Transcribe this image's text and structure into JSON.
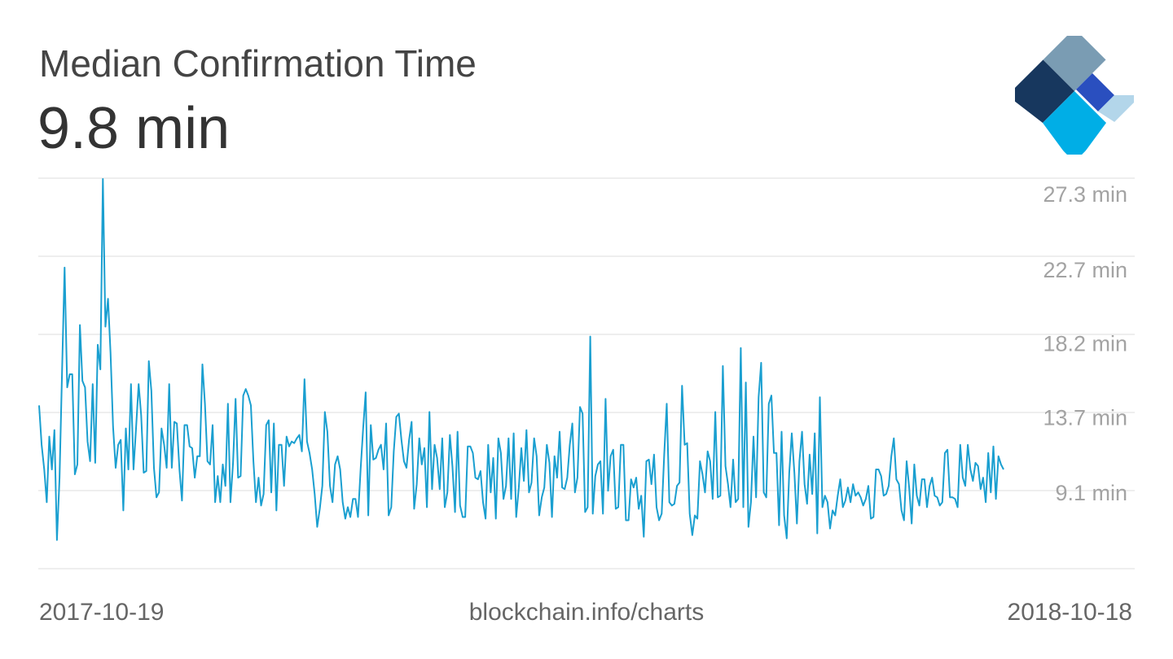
{
  "header": {
    "title": "Median Confirmation Time",
    "headline_value": "9.8 min"
  },
  "logo": {
    "icon": "blockchain-diamond-logo",
    "colors": [
      "#7a9cb3",
      "#17375e",
      "#2a4fbf",
      "#00aee6",
      "#b3d6ea"
    ]
  },
  "footer": {
    "start_date": "2017-10-19",
    "source": "blockchain.info/charts",
    "end_date": "2018-10-18"
  },
  "chart_data": {
    "type": "line",
    "title": "Median Confirmation Time",
    "xlabel": "",
    "ylabel": "",
    "x_range": [
      "2017-10-19",
      "2018-10-18"
    ],
    "ylim": [
      4.45,
      28.25
    ],
    "yticks": [
      {
        "value": 9.1,
        "label": "9.1 min"
      },
      {
        "value": 13.7,
        "label": "13.7 min"
      },
      {
        "value": 18.2,
        "label": "18.2 min"
      },
      {
        "value": 22.7,
        "label": "22.7 min"
      },
      {
        "value": 27.3,
        "label": "27.3 min"
      }
    ],
    "grid": true,
    "line_color": "#1a9fd0",
    "series": [
      {
        "values": [
          14.4,
          12.0,
          10.5,
          8.5,
          12.5,
          10.5,
          12.9,
          6.2,
          10.0,
          16.5,
          22.8,
          15.5,
          16.3,
          16.3,
          10.2,
          10.8,
          19.3,
          15.9,
          15.5,
          12.2,
          11.0,
          15.7,
          10.9,
          18.1,
          16.6,
          28.2,
          19.2,
          20.9,
          17.6,
          13.1,
          10.6,
          12.0,
          12.3,
          8.0,
          13.0,
          10.5,
          15.7,
          10.5,
          13.0,
          15.7,
          13.8,
          10.3,
          10.4,
          17.1,
          15.3,
          10.6,
          8.8,
          9.1,
          13.0,
          12.0,
          10.6,
          15.7,
          10.6,
          13.4,
          13.3,
          10.5,
          8.6,
          13.2,
          13.2,
          11.9,
          11.8,
          10.0,
          11.3,
          11.3,
          16.9,
          14.5,
          11.0,
          10.8,
          13.2,
          8.5,
          10.1,
          8.5,
          10.8,
          9.5,
          14.5,
          8.5,
          10.9,
          14.8,
          10.0,
          10.1,
          15.0,
          15.4,
          15.0,
          14.4,
          11.0,
          8.5,
          10.0,
          8.3,
          9.0,
          13.2,
          13.5,
          9.1,
          13.3,
          8.0,
          12.0,
          12.0,
          9.5,
          12.5,
          11.9,
          12.2,
          12.1,
          12.4,
          12.6,
          11.6,
          16.0,
          12.2,
          11.5,
          10.5,
          9.0,
          7.0,
          8.1,
          9.5,
          14.0,
          12.8,
          9.5,
          8.5,
          10.8,
          11.3,
          10.5,
          8.5,
          7.5,
          8.2,
          7.6,
          8.7,
          8.7,
          7.6,
          10.5,
          13.0,
          15.2,
          7.7,
          13.2,
          11.1,
          11.2,
          11.7,
          12.0,
          10.5,
          13.3,
          7.7,
          8.2,
          11.6,
          13.7,
          13.9,
          12.3,
          11.0,
          10.6,
          12.3,
          13.4,
          8.1,
          9.6,
          12.4,
          10.8,
          11.8,
          8.2,
          14.0,
          9.3,
          12.0,
          11.2,
          9.3,
          12.4,
          8.2,
          9.1,
          12.6,
          10.7,
          7.9,
          12.8,
          8.3,
          7.6,
          7.6,
          11.9,
          11.9,
          11.5,
          10.0,
          9.9,
          10.4,
          8.5,
          7.5,
          12.0,
          9.1,
          11.2,
          7.5,
          12.4,
          11.5,
          8.7,
          9.5,
          12.4,
          8.7,
          12.7,
          7.6,
          9.4,
          11.8,
          9.8,
          12.9,
          9.1,
          9.7,
          12.4,
          11.3,
          7.7,
          8.8,
          9.4,
          12.0,
          10.9,
          7.6,
          11.3,
          10.0,
          12.8,
          9.4,
          9.3,
          10.0,
          12.0,
          13.3,
          9.1,
          10.0,
          14.3,
          13.9,
          7.9,
          8.2,
          18.6,
          7.8,
          10.1,
          10.8,
          11.0,
          7.8,
          14.8,
          9.2,
          11.3,
          11.7,
          8.1,
          8.2,
          12.0,
          12.0,
          7.4,
          7.4,
          9.9,
          9.4,
          10.0,
          8.1,
          8.9,
          6.4,
          11.0,
          11.1,
          9.6,
          11.4,
          8.2,
          7.4,
          7.8,
          11.4,
          14.5,
          8.5,
          8.3,
          8.4,
          9.5,
          9.7,
          15.6,
          12.0,
          12.1,
          7.8,
          6.5,
          7.7,
          7.5,
          11.0,
          10.2,
          9.1,
          11.6,
          11.0,
          8.7,
          14.0,
          8.8,
          8.9,
          16.8,
          10.7,
          9.6,
          8.2,
          11.1,
          8.5,
          8.7,
          17.9,
          8.2,
          15.8,
          7.0,
          8.5,
          12.5,
          8.8,
          14.9,
          17.0,
          9.1,
          8.8,
          14.5,
          15.0,
          11.5,
          11.5,
          7.1,
          12.8,
          7.7,
          6.3,
          10.3,
          12.7,
          10.3,
          7.2,
          11.0,
          12.8,
          9.6,
          8.4,
          11.4,
          9.0,
          12.7,
          6.6,
          14.9,
          8.2,
          8.9,
          8.5,
          6.9,
          8.0,
          7.7,
          8.9,
          9.9,
          8.2,
          8.6,
          9.4,
          8.5,
          9.6,
          8.9,
          9.1,
          8.8,
          8.3,
          8.7,
          9.5,
          7.5,
          7.6,
          10.5,
          10.5,
          10.1,
          8.9,
          9.0,
          9.5,
          11.3,
          12.4,
          9.9,
          9.6,
          8.0,
          7.4,
          11.0,
          9.4,
          7.2,
          10.8,
          8.9,
          8.3,
          9.9,
          9.9,
          8.2,
          9.5,
          10.0,
          8.9,
          8.8,
          8.3,
          8.5,
          11.5,
          11.7,
          8.8,
          8.8,
          8.7,
          8.2,
          12.0,
          10.0,
          9.5,
          12.0,
          10.5,
          9.8,
          10.9,
          10.7,
          9.3,
          10.0,
          8.5,
          11.5,
          9.1,
          11.9,
          8.7,
          11.3,
          10.8,
          10.5
        ]
      }
    ]
  }
}
